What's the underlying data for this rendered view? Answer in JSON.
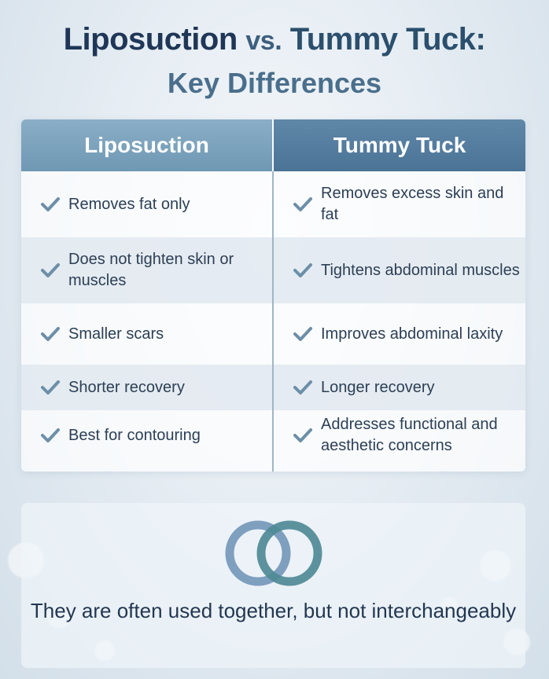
{
  "title": {
    "part1": "Liposuction",
    "part2": "vs.",
    "part3": "Tummy Tuck:",
    "line2": "Key Differences"
  },
  "table": {
    "headers": {
      "left": "Liposuction",
      "right": "Tummy Tuck"
    },
    "rows": [
      {
        "left": "Removes fat only",
        "right": "Removes excess skin and fat"
      },
      {
        "left": "Does not tighten skin or muscles",
        "right": "Tightens abdominal muscles"
      },
      {
        "left": "Smaller scars",
        "right": "Improves abdominal laxity"
      },
      {
        "left": "Shorter recovery",
        "right": "Longer recovery"
      },
      {
        "left": "Best for contouring",
        "right": "Addresses functional and aesthetic concerns"
      }
    ]
  },
  "footer": {
    "icon": "interlocking-rings-icon",
    "text": "They are often used together, but not interchangeably"
  },
  "colors": {
    "check": "#6c8fa8",
    "ring_left": "#7f9fbf",
    "ring_right": "#4f8a96",
    "header_left": "#7aa1bb",
    "header_right": "#56809f"
  }
}
